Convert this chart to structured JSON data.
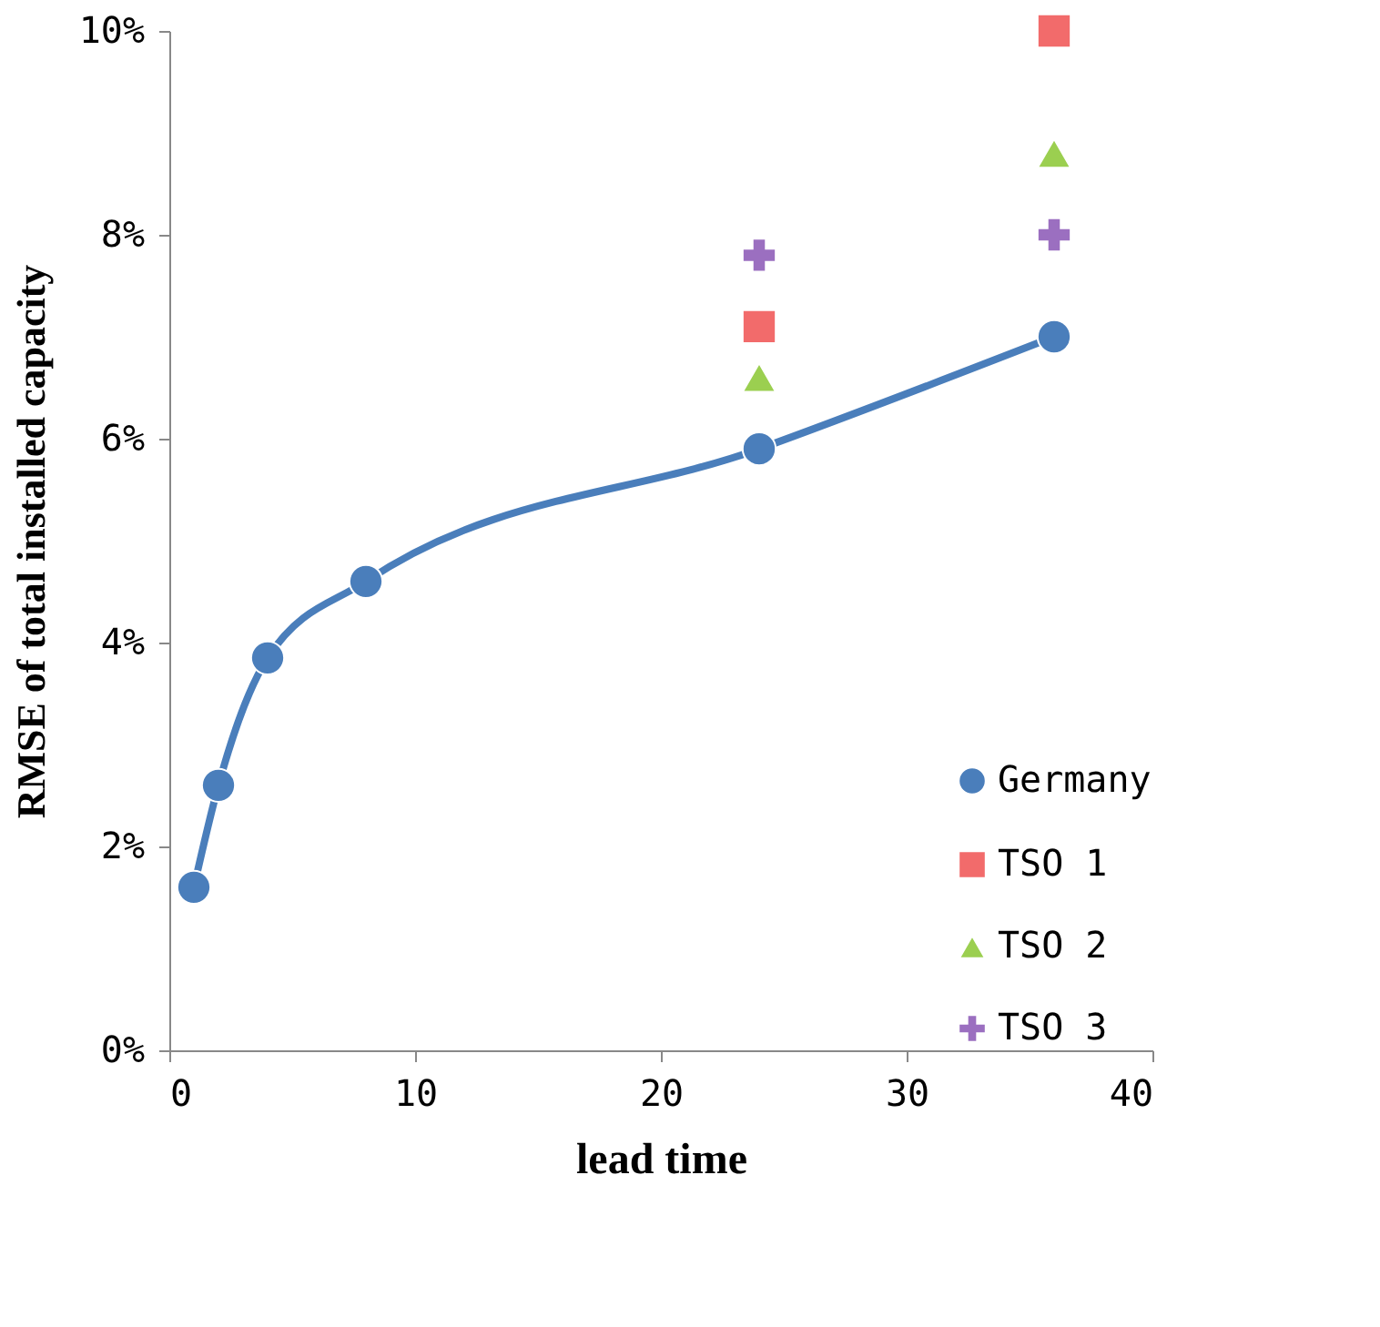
{
  "chart_data": {
    "type": "line",
    "xlabel": "lead time",
    "ylabel": "RMSE of total installed capacity",
    "xlim": [
      0,
      40
    ],
    "xticks": [
      0,
      10,
      20,
      30,
      40
    ],
    "ylim": [
      0,
      10
    ],
    "yticks": [
      {
        "value": 0,
        "label": "0%"
      },
      {
        "value": 2,
        "label": "2%"
      },
      {
        "value": 4,
        "label": "4%"
      },
      {
        "value": 6,
        "label": "6%"
      },
      {
        "value": 8,
        "label": "8%"
      },
      {
        "value": 10,
        "label": "10%"
      }
    ],
    "grid": false,
    "legend": "bottom right",
    "series": [
      {
        "name": "Germany",
        "marker": "circle",
        "line_style": "solid",
        "color": "#4a7ebb",
        "x": [
          1,
          2,
          4,
          8,
          24,
          36
        ],
        "values": [
          1.6,
          2.6,
          3.85,
          4.6,
          5.9,
          7.0
        ]
      },
      {
        "name": "TSO 1",
        "type": "scatter",
        "marker": "square",
        "color": "#f26b6b",
        "x": [
          24,
          36
        ],
        "values": [
          7.1,
          10.0
        ]
      },
      {
        "name": "TSO 2",
        "type": "scatter",
        "marker": "triangle",
        "color": "#9bcf50",
        "x": [
          24,
          36
        ],
        "values": [
          6.6,
          8.8
        ]
      },
      {
        "name": "TSO 3",
        "type": "scatter",
        "marker": "cross",
        "color": "#9b6fc0",
        "x": [
          24,
          36
        ],
        "values": [
          7.8,
          8.0
        ]
      }
    ]
  }
}
